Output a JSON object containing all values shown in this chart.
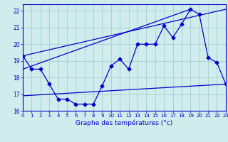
{
  "hours": [
    0,
    1,
    2,
    3,
    4,
    5,
    6,
    7,
    8,
    9,
    10,
    11,
    12,
    13,
    14,
    15,
    16,
    17,
    18,
    19,
    20,
    21,
    22,
    23
  ],
  "temp_main": [
    19.3,
    18.5,
    18.5,
    17.6,
    16.7,
    16.7,
    16.4,
    16.4,
    16.4,
    17.5,
    18.7,
    19.1,
    18.5,
    20.0,
    20.0,
    20.0,
    21.1,
    20.4,
    21.2,
    22.1,
    21.8,
    19.2,
    18.9,
    17.6
  ],
  "temp_min_line": [
    [
      0,
      16.9
    ],
    [
      23,
      17.6
    ]
  ],
  "trend_line1": [
    [
      0,
      19.3
    ],
    [
      23,
      22.1
    ]
  ],
  "trend_line2": [
    [
      0,
      18.5
    ],
    [
      19,
      22.1
    ]
  ],
  "line_color": "#0000cc",
  "bg_color": "#d0ecec",
  "grid_color": "#a8d4d4",
  "xlabel": "Graphe des températures (°c)",
  "xlim": [
    0,
    23
  ],
  "ylim": [
    16.0,
    22.4
  ],
  "yticks": [
    16,
    17,
    18,
    19,
    20,
    21,
    22
  ],
  "xticks": [
    0,
    1,
    2,
    3,
    4,
    5,
    6,
    7,
    8,
    9,
    10,
    11,
    12,
    13,
    14,
    15,
    16,
    17,
    18,
    19,
    20,
    21,
    22,
    23
  ]
}
